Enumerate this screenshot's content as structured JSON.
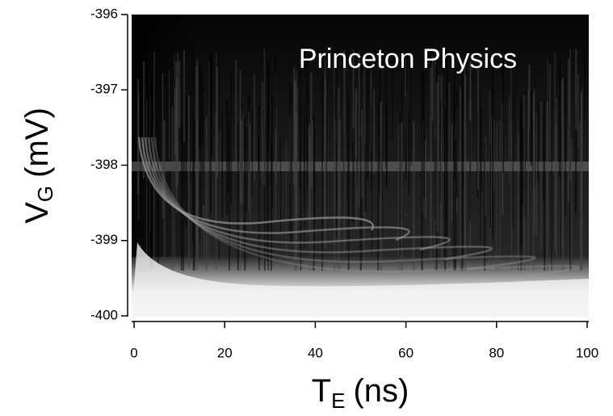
{
  "chart_data": {
    "type": "heatmap",
    "annotation": "Princeton Physics",
    "xlabel": {
      "main": "T",
      "sub": "E",
      "unit": "(ns)"
    },
    "ylabel": {
      "main": "V",
      "sub": "G",
      "unit": "(mV)"
    },
    "xlim": [
      0,
      100
    ],
    "xticks": [
      0,
      20,
      40,
      60,
      80,
      100
    ],
    "ylim": [
      -400,
      -396
    ],
    "yticks": [
      -400,
      -399,
      -398,
      -397,
      -396
    ]
  }
}
